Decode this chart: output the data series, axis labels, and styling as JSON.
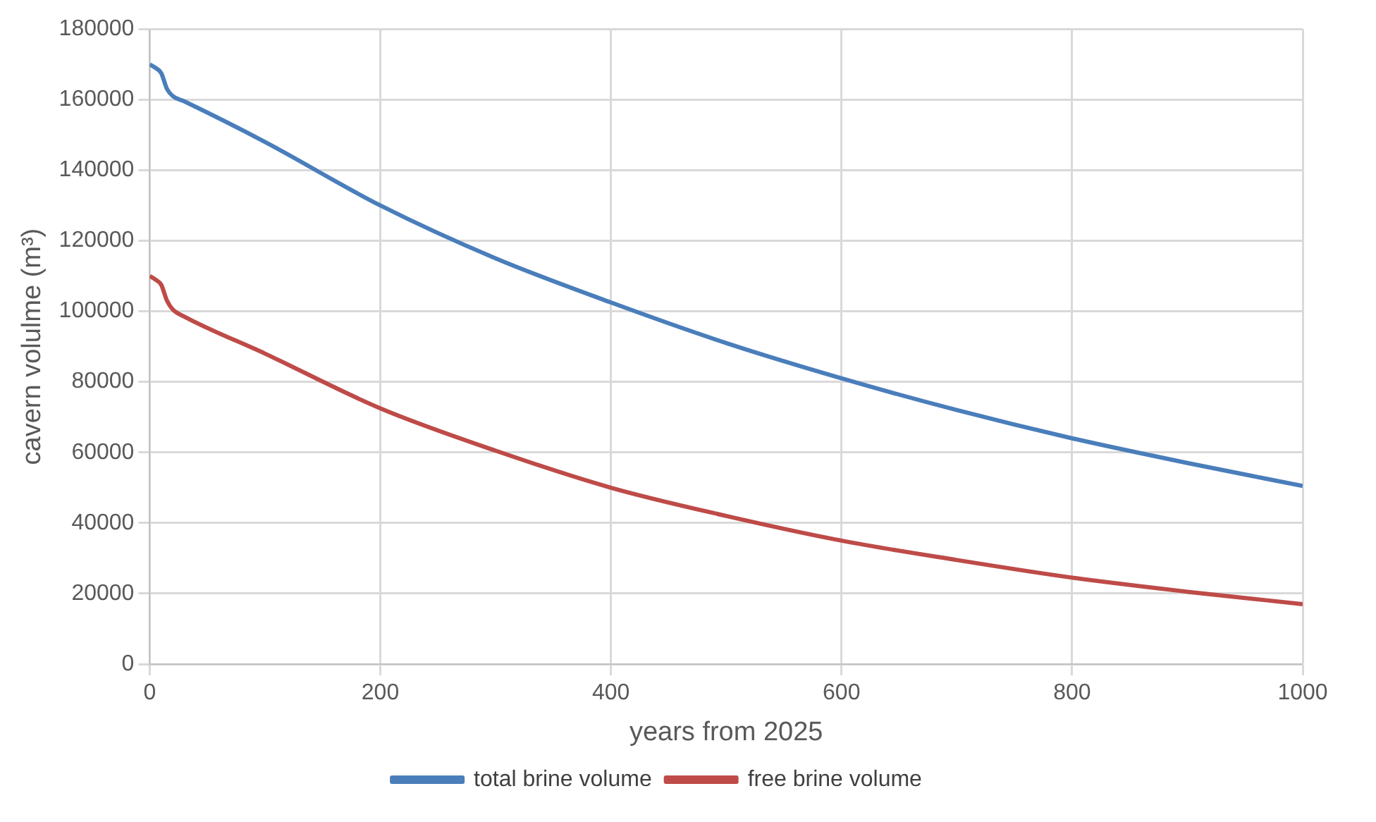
{
  "chart_data": {
    "type": "line",
    "xlabel": "years from 2025",
    "ylabel": "cavern volulme (m³)",
    "xlim": [
      0,
      1000
    ],
    "xticks": [
      0,
      200,
      400,
      600,
      800,
      1000
    ],
    "ylim": [
      0,
      180000
    ],
    "yticks": [
      0,
      20000,
      40000,
      60000,
      80000,
      100000,
      120000,
      140000,
      160000,
      180000
    ],
    "grid": true,
    "legend": "bottom",
    "marker": "none",
    "line_style": "solid",
    "x": [
      0,
      5,
      10,
      15,
      20,
      30,
      100,
      200,
      300,
      400,
      500,
      600,
      700,
      800,
      900,
      1000
    ],
    "series": [
      {
        "name": "total brine volume",
        "color": "#4a7ebb",
        "values": [
          170000,
          169000,
          167500,
          163000,
          161000,
          159500,
          148000,
          130000,
          115000,
          102500,
          91000,
          81000,
          72000,
          64000,
          57000,
          50500
        ]
      },
      {
        "name": "free brine volume",
        "color": "#be4b48",
        "values": [
          110000,
          109000,
          107500,
          103000,
          100500,
          98500,
          88000,
          72500,
          60500,
          50000,
          42000,
          35000,
          29500,
          24500,
          20500,
          17000
        ]
      }
    ]
  }
}
